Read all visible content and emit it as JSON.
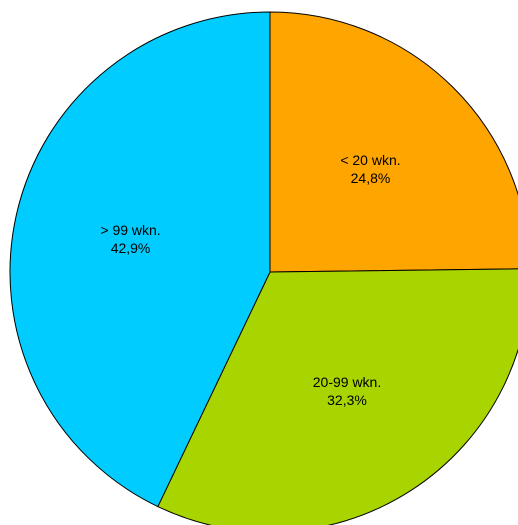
{
  "chart_data": {
    "type": "pie",
    "categories": [
      "< 20 wkn.",
      "20-99 wkn.",
      "> 99 wkn."
    ],
    "values": [
      24.8,
      32.3,
      42.9
    ],
    "value_labels": [
      "24,8%",
      "32,3%",
      "42,9%"
    ],
    "colors": [
      "#ffa500",
      "#a8d400",
      "#00ccff"
    ]
  }
}
